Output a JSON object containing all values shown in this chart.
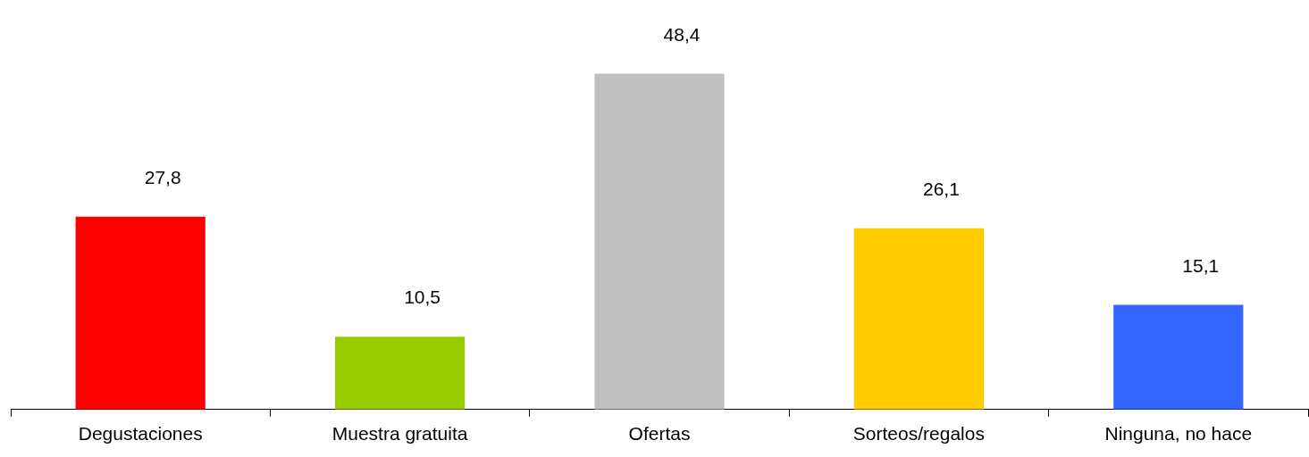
{
  "chart_data": {
    "type": "bar",
    "categories": [
      "Degustaciones",
      "Muestra gratuita",
      "Ofertas",
      "Sorteos/regalos",
      "Ninguna, no hace"
    ],
    "values": [
      27.8,
      10.5,
      48.4,
      26.1,
      15.1
    ],
    "colors": [
      "#ff0000",
      "#99cc00",
      "#c0c0c0",
      "#ffcc00",
      "#3366ff"
    ],
    "value_labels": [
      "27,8",
      "10,5",
      "48,4",
      "26,1",
      "15,1"
    ]
  }
}
